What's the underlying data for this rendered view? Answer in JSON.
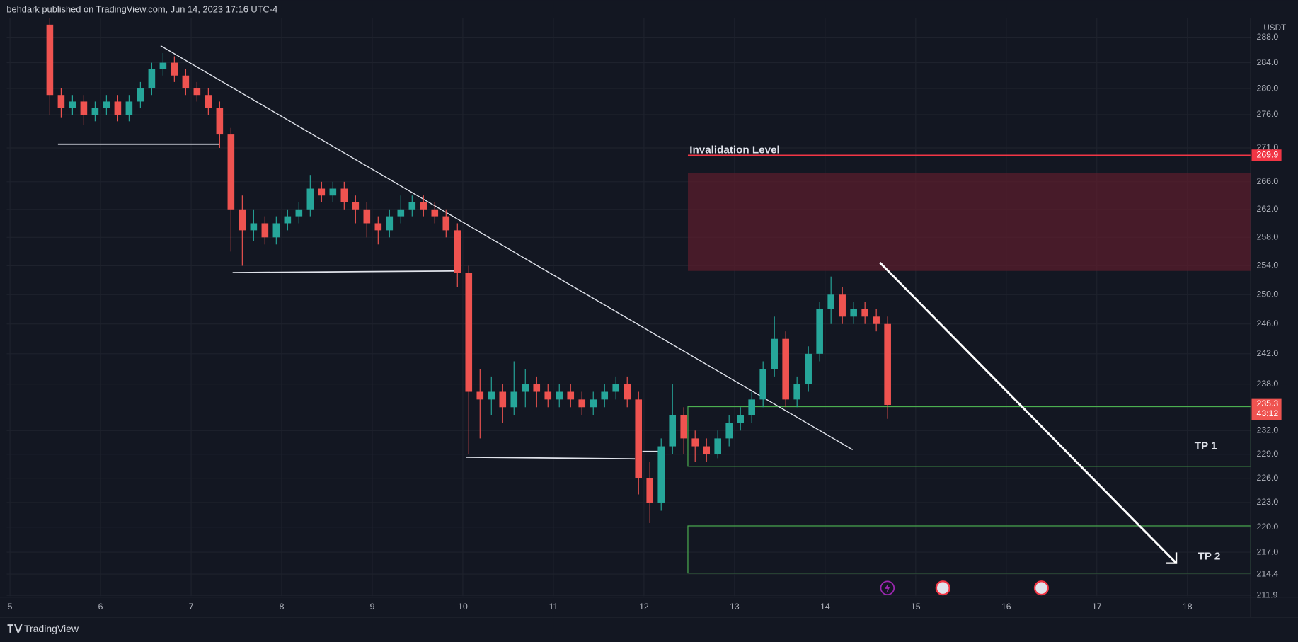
{
  "header": "behdark published on TradingView.com, Jun 14, 2023 17:16 UTC-4",
  "footer": "TradingView",
  "chart_data": {
    "type": "candlestick",
    "unit": "USDT",
    "log_scale": true,
    "grid": true,
    "x": [
      5.44,
      5.565,
      5.69,
      5.815,
      5.94,
      6.065,
      6.19,
      6.315,
      6.44,
      6.565,
      6.69,
      6.815,
      6.94,
      7.065,
      7.19,
      7.315,
      7.44,
      7.565,
      7.69,
      7.815,
      7.94,
      8.065,
      8.19,
      8.315,
      8.44,
      8.565,
      8.69,
      8.815,
      8.94,
      9.065,
      9.19,
      9.315,
      9.44,
      9.565,
      9.69,
      9.815,
      9.94,
      10.065,
      10.19,
      10.315,
      10.44,
      10.565,
      10.69,
      10.815,
      10.94,
      11.065,
      11.19,
      11.315,
      11.44,
      11.565,
      11.69,
      11.815,
      11.94,
      12.065,
      12.19,
      12.315,
      12.44,
      12.565,
      12.69,
      12.815,
      12.94,
      13.065,
      13.19,
      13.315,
      13.44,
      13.565,
      13.69,
      13.815,
      13.94,
      14.065,
      14.19,
      14.315,
      14.44,
      14.565,
      14.69
    ],
    "series": [
      {
        "up_color": "#26a69a",
        "down_color": "#ef5350",
        "open": [
          290,
          279,
          277,
          278,
          276,
          277,
          278,
          276,
          278,
          280,
          283,
          284,
          282,
          280,
          279,
          277,
          273,
          262,
          259,
          260,
          258,
          260,
          261,
          262,
          265,
          264,
          265,
          263,
          262,
          260,
          259,
          261,
          262,
          263,
          262,
          261,
          259,
          253,
          237,
          236,
          237,
          235,
          237,
          238,
          237,
          236,
          237,
          236,
          235,
          236,
          237,
          238,
          236,
          226,
          223,
          230,
          234,
          231,
          230,
          229,
          231,
          233,
          234,
          236,
          240,
          244,
          236,
          238,
          242,
          248,
          250,
          247,
          248,
          247,
          246
        ],
        "high": [
          291,
          280,
          279,
          279,
          278,
          279,
          279,
          279,
          281,
          284,
          285.5,
          285,
          283,
          281,
          280,
          278,
          274,
          264,
          262,
          261,
          261,
          262,
          263,
          267,
          266,
          266,
          266,
          264,
          263,
          261,
          262,
          264,
          264,
          264,
          263,
          262,
          260,
          254,
          240,
          239,
          238,
          241,
          240,
          239,
          238,
          238,
          238,
          237,
          237,
          238,
          239,
          239,
          237,
          228,
          231,
          238,
          235,
          232,
          231,
          232,
          234,
          235,
          237,
          241,
          247,
          245,
          239,
          243,
          249,
          252.5,
          251,
          249,
          249,
          248,
          247
        ],
        "low": [
          276,
          275.5,
          276,
          274.5,
          275,
          276,
          275,
          275,
          277,
          279,
          282,
          281,
          279,
          278,
          276,
          271,
          256,
          254,
          257.5,
          257,
          257,
          259,
          260,
          261,
          263,
          263,
          262,
          260,
          258,
          257,
          258,
          260,
          261,
          261,
          260,
          258,
          251,
          229,
          231,
          234,
          233,
          234,
          235,
          235,
          235,
          235,
          235,
          234,
          234,
          235,
          236,
          235,
          224,
          220.5,
          222,
          229,
          229,
          228,
          228,
          228.5,
          230,
          232,
          233,
          235,
          239,
          235,
          235,
          237,
          241,
          246,
          246,
          246,
          246,
          245,
          233.5
        ],
        "close": [
          279,
          277,
          278,
          276,
          277,
          278,
          276,
          278,
          280,
          283,
          284,
          282,
          280,
          279,
          277,
          273,
          262,
          259,
          260,
          258,
          260,
          261,
          262,
          265,
          264,
          265,
          263,
          262,
          260,
          259,
          261,
          262,
          263,
          262,
          261,
          259,
          253,
          237,
          236,
          237,
          235,
          237,
          238,
          237,
          236,
          237,
          236,
          235,
          236,
          237,
          238,
          236,
          226,
          223,
          230,
          234,
          231,
          230,
          229,
          231,
          233,
          234,
          236,
          240,
          244,
          236,
          238,
          242,
          248,
          250,
          247,
          248,
          247,
          246,
          235.3
        ]
      }
    ],
    "xlim": [
      4.963,
      18.7
    ],
    "xticks": [
      5,
      6,
      7,
      8,
      9,
      10,
      11,
      12,
      13,
      14,
      15,
      16,
      17,
      18
    ],
    "ylim": [
      211.8,
      291
    ],
    "yticks": [
      {
        "value": 211.9,
        "label": "211.9"
      },
      {
        "value": 214.4,
        "label": "214.4"
      },
      {
        "value": 217,
        "label": "217.0"
      },
      {
        "value": 220,
        "label": "220.0"
      },
      {
        "value": 223,
        "label": "223.0"
      },
      {
        "value": 226,
        "label": "226.0"
      },
      {
        "value": 229,
        "label": "229.0"
      },
      {
        "value": 232,
        "label": "232.0"
      },
      {
        "value": 238,
        "label": "238.0"
      },
      {
        "value": 242,
        "label": "242.0"
      },
      {
        "value": 246,
        "label": "246.0"
      },
      {
        "value": 250,
        "label": "250.0"
      },
      {
        "value": 254,
        "label": "254.0"
      },
      {
        "value": 258,
        "label": "258.0"
      },
      {
        "value": 262,
        "label": "262.0"
      },
      {
        "value": 266,
        "label": "266.0"
      },
      {
        "value": 271,
        "label": "271.0"
      },
      {
        "value": 276,
        "label": "276.0"
      },
      {
        "value": 280,
        "label": "280.0"
      },
      {
        "value": 284,
        "label": "284.0"
      },
      {
        "value": 288,
        "label": "288.0"
      }
    ],
    "annotations": {
      "invalidation_label": "Invalidation Level",
      "invalidation_price": 269.9,
      "targets": [
        "TP 1",
        "TP 2"
      ]
    },
    "countdown": "43:12"
  }
}
